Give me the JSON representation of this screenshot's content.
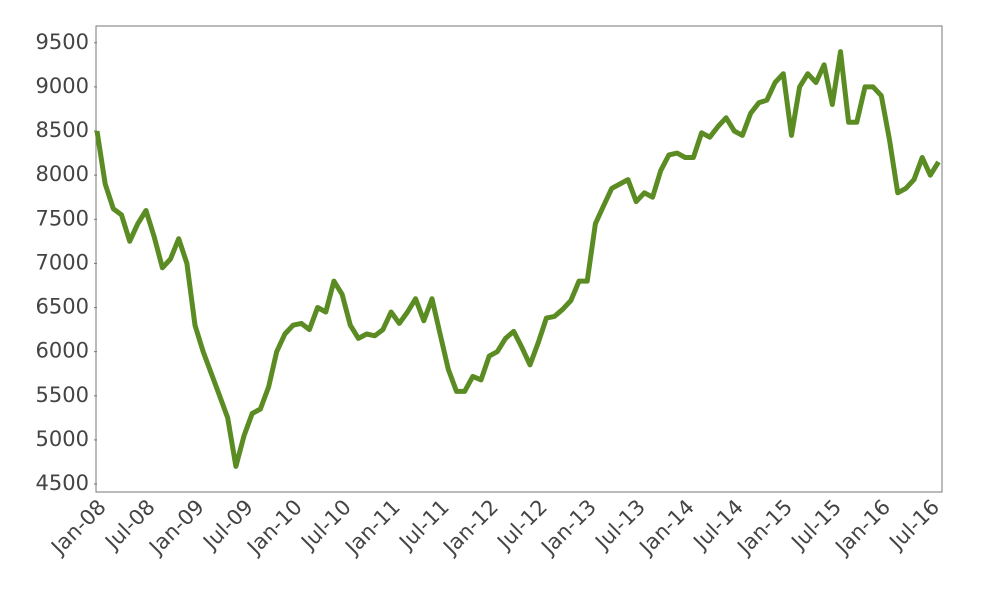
{
  "chart_data": {
    "type": "line",
    "categories": [
      "Jan-08",
      null,
      null,
      null,
      null,
      null,
      "Jul-08",
      null,
      null,
      null,
      null,
      null,
      "Jan-09",
      null,
      null,
      null,
      null,
      null,
      "Jul-09",
      null,
      null,
      null,
      null,
      null,
      "Jan-10",
      null,
      null,
      null,
      null,
      null,
      "Jul-10",
      null,
      null,
      null,
      null,
      null,
      "Jan-11",
      null,
      null,
      null,
      null,
      null,
      "Jul-11",
      null,
      null,
      null,
      null,
      null,
      "Jan-12",
      null,
      null,
      null,
      null,
      null,
      "Jul-12",
      null,
      null,
      null,
      null,
      null,
      "Jan-13",
      null,
      null,
      null,
      null,
      null,
      "Jul-13",
      null,
      null,
      null,
      null,
      null,
      "Jan-14",
      null,
      null,
      null,
      null,
      null,
      "Jul-14",
      null,
      null,
      null,
      null,
      null,
      "Jan-15",
      null,
      null,
      null,
      null,
      null,
      "Jul-15",
      null,
      null,
      null,
      null,
      null,
      "Jan-16",
      null,
      null,
      null,
      null,
      null,
      "Jul-16",
      null
    ],
    "series": [
      {
        "color": "#5b8c23",
        "values": [
          8500,
          7900,
          7620,
          7550,
          7250,
          7450,
          7600,
          7300,
          6950,
          7050,
          7280,
          7000,
          6300,
          6000,
          5750,
          5500,
          5250,
          4700,
          5050,
          5300,
          5350,
          5600,
          6000,
          6200,
          6300,
          6320,
          6250,
          6500,
          6450,
          6800,
          6650,
          6300,
          6150,
          6200,
          6180,
          6250,
          6450,
          6320,
          6450,
          6600,
          6350,
          6600,
          6200,
          5800,
          5550,
          5550,
          5720,
          5680,
          5950,
          6000,
          6150,
          6230,
          6050,
          5850,
          6100,
          6380,
          6400,
          6480,
          6580,
          6800,
          6800,
          7450,
          7650,
          7850,
          7900,
          7950,
          7700,
          7800,
          7750,
          8050,
          8230,
          8250,
          8200,
          8200,
          8480,
          8430,
          8550,
          8650,
          8500,
          8450,
          8700,
          8820,
          8850,
          9050,
          9150,
          8450,
          9000,
          9150,
          9050,
          9250,
          8800,
          9400,
          8600,
          8600,
          9000,
          9000,
          8900,
          8400,
          7800,
          7850,
          7950,
          8200,
          8000,
          8150
        ]
      }
    ],
    "ylim": [
      4410,
      9690
    ],
    "yticks": [
      4500,
      5000,
      5500,
      6000,
      6500,
      7000,
      7500,
      8000,
      8500,
      9000,
      9500
    ],
    "grid": false
  }
}
